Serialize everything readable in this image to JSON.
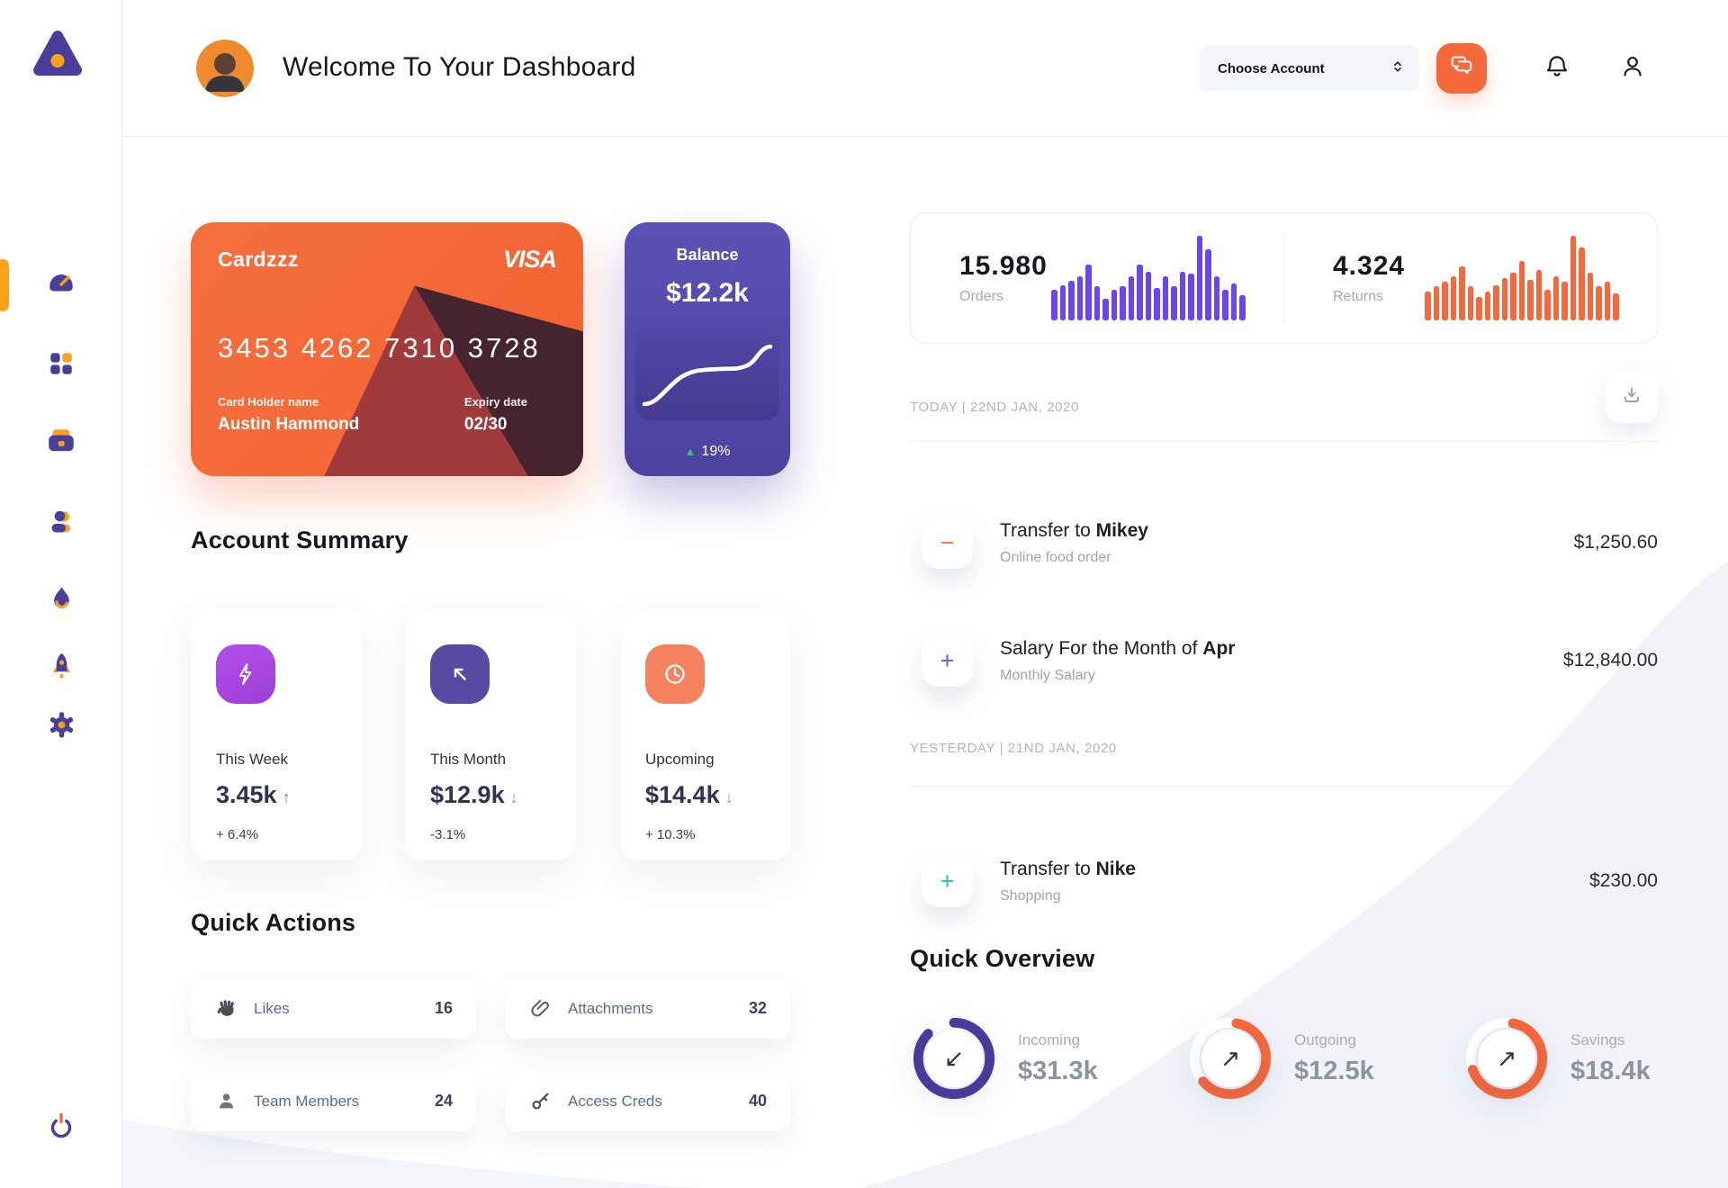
{
  "colors": {
    "brand_orange": "#F4683C",
    "brand_purple": "#4A3F98",
    "accent_amber": "#F9A11B",
    "bars_purple": "#6B45F0",
    "bars_orange": "#F4683C",
    "donut_purple": "#4C3A9C",
    "donut_orange": "#F4683C",
    "positive_green": "#22B573",
    "negative_red": "#ED6E6E"
  },
  "sidebar": {
    "items": [
      {
        "icon": "dashboard-gauge",
        "active": true
      },
      {
        "icon": "apps-grid",
        "active": false
      },
      {
        "icon": "briefcase",
        "active": false
      },
      {
        "icon": "team-user",
        "active": false
      },
      {
        "icon": "flame",
        "active": false
      },
      {
        "icon": "rocket",
        "active": false
      },
      {
        "icon": "gear",
        "active": false
      }
    ],
    "logout_icon": "power"
  },
  "header": {
    "title": "Welcome To Your Dashboard",
    "account_select_label": "Choose Account",
    "icons": {
      "chat": "chat-bubbles",
      "notifications": "bell",
      "profile": "user-outline"
    }
  },
  "wallet": {
    "card": {
      "name": "Cardzzz",
      "brand": "VISA",
      "number": "3453 4262 7310 3728",
      "holder_label": "Card Holder name",
      "holder": "Austin Hammond",
      "expiry_label": "Expiry date",
      "expiry": "02/30"
    },
    "balance": {
      "label": "Balance",
      "amount": "$12.2k",
      "trend_arrow": "▲",
      "change": "19%"
    }
  },
  "stats": {
    "orders": {
      "value": "15.980",
      "label": "Orders",
      "color": "#6B45F0",
      "bars": [
        0.36,
        0.42,
        0.47,
        0.52,
        0.66,
        0.4,
        0.26,
        0.36,
        0.4,
        0.52,
        0.66,
        0.57,
        0.38,
        0.52,
        0.4,
        0.57,
        0.55,
        1.0,
        0.84,
        0.52,
        0.36,
        0.44,
        0.3
      ]
    },
    "returns": {
      "value": "4.324",
      "label": "Returns",
      "color": "#F4683C",
      "bars": [
        0.34,
        0.4,
        0.46,
        0.52,
        0.64,
        0.4,
        0.28,
        0.34,
        0.42,
        0.5,
        0.56,
        0.7,
        0.48,
        0.6,
        0.36,
        0.52,
        0.46,
        1.0,
        0.86,
        0.56,
        0.4,
        0.46,
        0.32
      ]
    }
  },
  "account_summary": {
    "title": "Account Summary",
    "cards": [
      {
        "icon": "lightning",
        "label": "This Week",
        "value": "3.45k",
        "arrow": "↑",
        "delta": "+ 6.4%"
      },
      {
        "icon": "arrow-up-left",
        "label": "This Month",
        "value": "$12.9k",
        "arrow": "↓",
        "delta": "-3.1%"
      },
      {
        "icon": "clock",
        "label": "Upcoming",
        "value": "$14.4k",
        "arrow": "↓",
        "delta": "+ 10.3%"
      }
    ]
  },
  "quick_actions": {
    "title": "Quick Actions",
    "items": [
      {
        "icon": "waving-hand",
        "label": "Likes",
        "count": "16"
      },
      {
        "icon": "paperclip",
        "label": "Attachments",
        "count": "32"
      },
      {
        "icon": "person",
        "label": "Team Members",
        "count": "24"
      },
      {
        "icon": "key",
        "label": "Access Creds",
        "count": "40"
      }
    ]
  },
  "transactions": {
    "download_icon": "download",
    "groups": [
      {
        "date": "TODAY | 22ND JAN, 2020",
        "rows": [
          {
            "sign": "−",
            "title": "Transfer to ",
            "title_bold": "Mikey",
            "subtitle": "Online food order",
            "amount": "$1,250.60"
          },
          {
            "sign": "+",
            "title": "Salary For the Month of ",
            "title_bold": "Apr",
            "subtitle": "Monthly Salary",
            "amount": "$12,840.00"
          }
        ]
      },
      {
        "date": "YESTERDAY | 21ND JAN, 2020",
        "rows": [
          {
            "sign": "+",
            "title": "Transfer to ",
            "title_bold": "Nike",
            "subtitle": "Shopping",
            "amount": "$230.00"
          }
        ]
      }
    ]
  },
  "quick_overview": {
    "title": "Quick Overview",
    "items": [
      {
        "label": "Incoming",
        "value": "$31.3k",
        "arrow": "↙",
        "percent": 87,
        "start": -90,
        "color": "#4C3A9C"
      },
      {
        "label": "Outgoing",
        "value": "$12.5k",
        "arrow": "↗",
        "percent": 61,
        "start": -80,
        "color": "#F4683C"
      },
      {
        "label": "Savings",
        "value": "$18.4k",
        "arrow": "↗",
        "percent": 67,
        "start": -80,
        "color": "#F4683C"
      }
    ]
  }
}
